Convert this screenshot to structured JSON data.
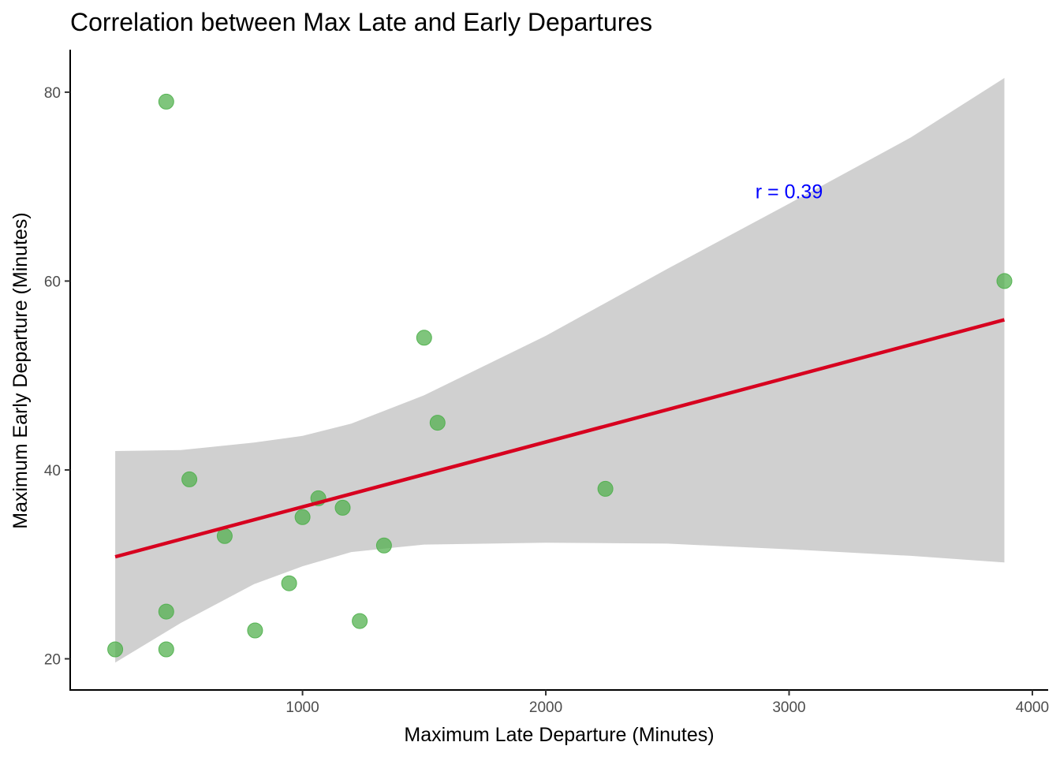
{
  "chart_data": {
    "type": "scatter",
    "title": "Correlation between Max Late and Early Departures",
    "xlabel": "Maximum Late Departure (Minutes)",
    "ylabel": "Maximum Early Departure (Minutes)",
    "xlim": [
      45,
      4065
    ],
    "ylim": [
      16.7,
      84.5
    ],
    "x_ticks": [
      1000,
      2000,
      3000,
      4000
    ],
    "x_tick_labels": [
      "1000",
      "2000",
      "3000",
      "4000"
    ],
    "y_ticks": [
      20,
      40,
      60,
      80
    ],
    "y_tick_labels": [
      "20",
      "40",
      "60",
      "80"
    ],
    "grid": false,
    "points": [
      {
        "x": 230,
        "y": 21
      },
      {
        "x": 440,
        "y": 25
      },
      {
        "x": 440,
        "y": 79
      },
      {
        "x": 440,
        "y": 21
      },
      {
        "x": 535,
        "y": 39
      },
      {
        "x": 680,
        "y": 33
      },
      {
        "x": 805,
        "y": 23
      },
      {
        "x": 945,
        "y": 28
      },
      {
        "x": 1000,
        "y": 35
      },
      {
        "x": 1065,
        "y": 37
      },
      {
        "x": 1165,
        "y": 36
      },
      {
        "x": 1235,
        "y": 24
      },
      {
        "x": 1335,
        "y": 32
      },
      {
        "x": 1500,
        "y": 54
      },
      {
        "x": 1555,
        "y": 45
      },
      {
        "x": 2245,
        "y": 38
      },
      {
        "x": 3885,
        "y": 60
      }
    ],
    "regression_line": {
      "x": [
        230,
        3885
      ],
      "y": [
        30.8,
        55.9
      ]
    },
    "confidence_band": {
      "x": [
        230,
        500,
        800,
        1000,
        1200,
        1500,
        2000,
        2500,
        3000,
        3500,
        3885
      ],
      "upper": [
        42.0,
        42.1,
        42.9,
        43.6,
        44.9,
        47.9,
        54.2,
        61.3,
        68.2,
        75.2,
        81.5
      ],
      "lower": [
        19.6,
        23.8,
        27.9,
        29.8,
        31.3,
        32.1,
        32.3,
        32.2,
        31.6,
        30.9,
        30.2
      ]
    },
    "annotation": {
      "text": "r = 0.39",
      "x": 3000,
      "y": 69.5,
      "color": "#0000FF"
    },
    "colors": {
      "points": "#4DAF4A",
      "line": "#D7001F",
      "band": "#BEBEBE"
    }
  }
}
